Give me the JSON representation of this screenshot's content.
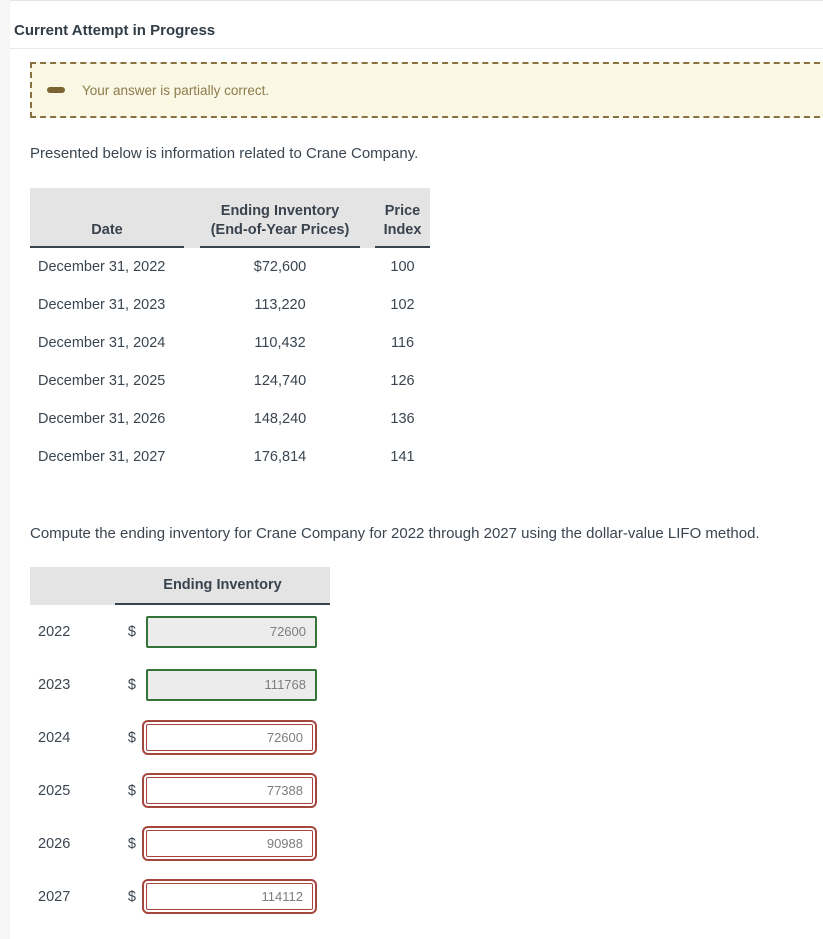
{
  "page": {
    "title": "Current Attempt in Progress"
  },
  "alert": {
    "message": "Your answer is partially correct.",
    "icon": "dash-icon",
    "background_color": "#fbf7e5",
    "border_color": "#8a7140",
    "text_color": "#8b7c4b"
  },
  "intro_text": "Presented below is information related to Crane Company.",
  "data_table": {
    "headers": {
      "date": "Date",
      "inventory_line1": "Ending Inventory",
      "inventory_line2": "(End-of-Year Prices)",
      "index_line1": "Price",
      "index_line2": "Index"
    },
    "rows": [
      {
        "date": "December 31, 2022",
        "inventory": "$72,600",
        "index": "100"
      },
      {
        "date": "December 31, 2023",
        "inventory": "113,220",
        "index": "102"
      },
      {
        "date": "December 31, 2024",
        "inventory": "110,432",
        "index": "116"
      },
      {
        "date": "December 31, 2025",
        "inventory": "124,740",
        "index": "126"
      },
      {
        "date": "December 31, 2026",
        "inventory": "148,240",
        "index": "136"
      },
      {
        "date": "December 31, 2027",
        "inventory": "176,814",
        "index": "141"
      }
    ]
  },
  "question_text": "Compute the ending inventory for Crane Company for 2022 through 2027 using the dollar-value LIFO method.",
  "answer_table": {
    "header": "Ending Inventory",
    "currency_symbol": "$",
    "rows": [
      {
        "year": "2022",
        "value": "72600",
        "status": "correct"
      },
      {
        "year": "2023",
        "value": "111768",
        "status": "correct"
      },
      {
        "year": "2024",
        "value": "72600",
        "status": "incorrect"
      },
      {
        "year": "2025",
        "value": "77388",
        "status": "incorrect"
      },
      {
        "year": "2026",
        "value": "90988",
        "status": "incorrect"
      },
      {
        "year": "2027",
        "value": "114112",
        "status": "incorrect"
      }
    ],
    "correct_border_color": "#367339",
    "incorrect_border_color": "#a5463f"
  }
}
